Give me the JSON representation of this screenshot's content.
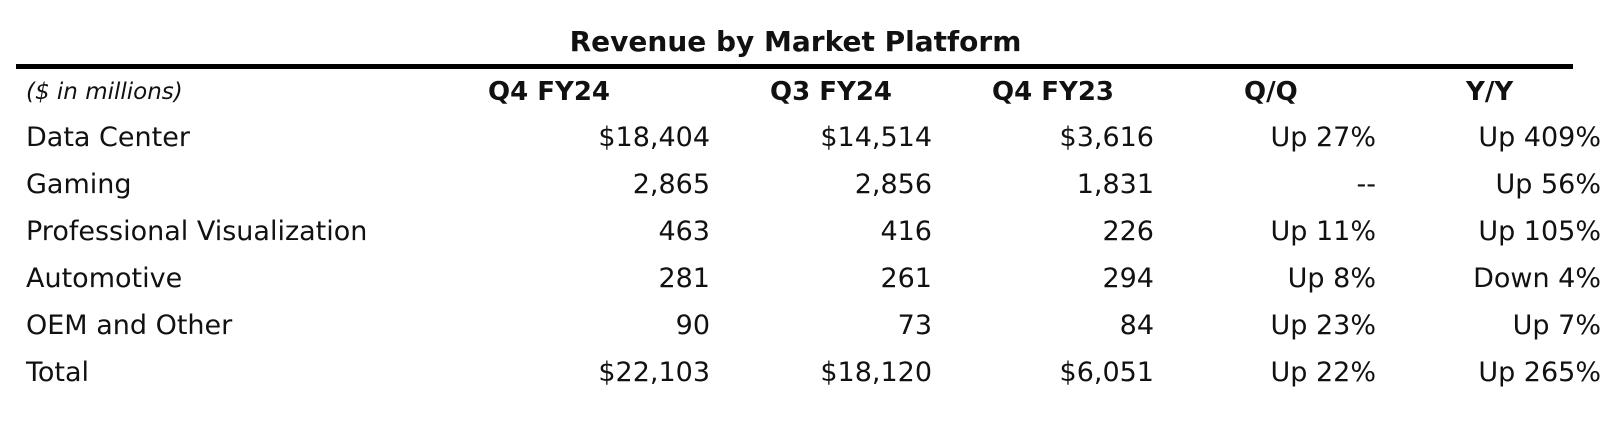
{
  "chart_data": {
    "type": "table",
    "title": "Revenue by Market Platform",
    "units": "($ in millions)",
    "columns": [
      "Q4 FY24",
      "Q3 FY24",
      "Q4 FY23",
      "Q/Q",
      "Y/Y"
    ],
    "rows": [
      {
        "label": "Data Center",
        "values": [
          "$18,404",
          "$14,514",
          "$3,616",
          "Up 27%",
          "Up 409%"
        ]
      },
      {
        "label": "Gaming",
        "values": [
          "2,865",
          "2,856",
          "1,831",
          "--",
          "Up 56%"
        ]
      },
      {
        "label": "Professional Visualization",
        "values": [
          "463",
          "416",
          "226",
          "Up 11%",
          "Up 105%"
        ]
      },
      {
        "label": "Automotive",
        "values": [
          "281",
          "261",
          "294",
          "Up 8%",
          "Down 4%"
        ]
      },
      {
        "label": "OEM and Other",
        "values": [
          "90",
          "73",
          "84",
          "Up 23%",
          "Up 7%"
        ]
      },
      {
        "label": "Total",
        "values": [
          "$22,103",
          "$18,120",
          "$6,051",
          "Up 22%",
          "Up 265%"
        ]
      }
    ]
  }
}
